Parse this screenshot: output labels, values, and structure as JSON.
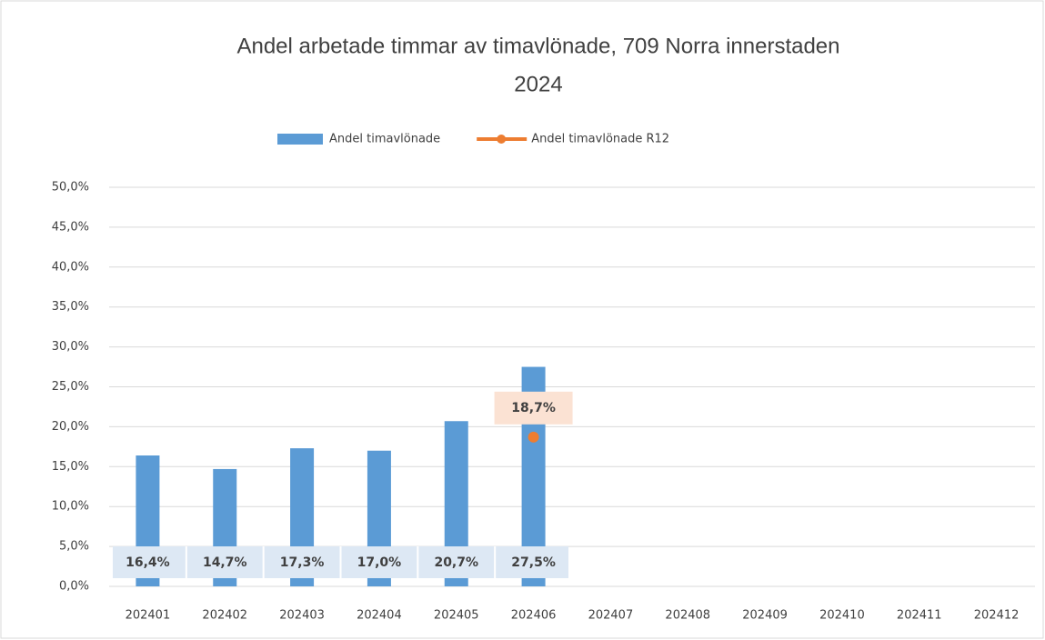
{
  "chart_data": {
    "type": "bar",
    "title": [
      "Andel arbetade timmar av timavlönade, 709 Norra innerstaden",
      "2024"
    ],
    "categories": [
      "202401",
      "202402",
      "202403",
      "202404",
      "202405",
      "202406",
      "202407",
      "202408",
      "202409",
      "202410",
      "202411",
      "202412"
    ],
    "series": [
      {
        "name": "Andel timavlönade",
        "type": "bar",
        "color": "#5b9bd5",
        "label_bg": "#dde8f4",
        "values": [
          16.4,
          14.7,
          17.3,
          17.0,
          20.7,
          27.5,
          null,
          null,
          null,
          null,
          null,
          null
        ],
        "value_labels": [
          "16,4%",
          "14,7%",
          "17,3%",
          "17,0%",
          "20,7%",
          "27,5%",
          null,
          null,
          null,
          null,
          null,
          null
        ]
      },
      {
        "name": "Andel timavlönade R12",
        "type": "line",
        "color": "#ed7d31",
        "label_bg": "#fbe2d3",
        "values": [
          null,
          null,
          null,
          null,
          null,
          18.7,
          null,
          null,
          null,
          null,
          null,
          null
        ],
        "value_labels": [
          null,
          null,
          null,
          null,
          null,
          "18,7%",
          null,
          null,
          null,
          null,
          null,
          null
        ]
      }
    ],
    "ylim": [
      0,
      50
    ],
    "yticks": [
      {
        "value": 0,
        "label": "0,0%"
      },
      {
        "value": 5,
        "label": "5,0%"
      },
      {
        "value": 10,
        "label": "10,0%"
      },
      {
        "value": 15,
        "label": "15,0%"
      },
      {
        "value": 20,
        "label": "20,0%"
      },
      {
        "value": 25,
        "label": "25,0%"
      },
      {
        "value": 30,
        "label": "30,0%"
      },
      {
        "value": 35,
        "label": "35,0%"
      },
      {
        "value": 40,
        "label": "40,0%"
      },
      {
        "value": 45,
        "label": "45,0%"
      },
      {
        "value": 50,
        "label": "50,0%"
      }
    ],
    "grid": true,
    "legend": "top"
  }
}
